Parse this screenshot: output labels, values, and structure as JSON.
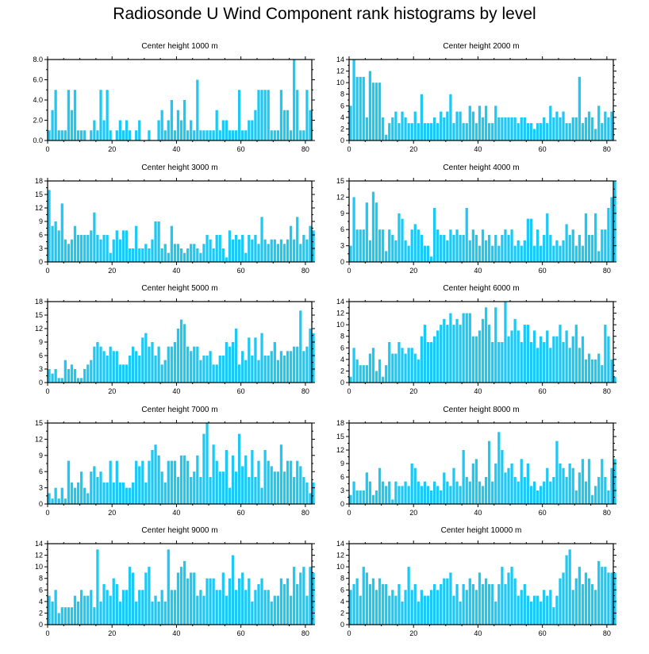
{
  "title": "Radiosonde U Wind Component rank histograms by level",
  "colors": {
    "bar": "#1ec8f5",
    "axis": "#000000"
  },
  "chart_data": [
    {
      "type": "bar",
      "title": "Center height 1000 m",
      "xlabel": "",
      "ylabel": "",
      "xlim": [
        0,
        82
      ],
      "ylim": [
        0,
        8
      ],
      "yticks": [
        0,
        2,
        4,
        6,
        8
      ],
      "ytick_labels": [
        "0.0",
        "2.0",
        "4.0",
        "6.0",
        "8.0"
      ],
      "xticks": [
        0,
        20,
        40,
        60,
        80
      ],
      "values": [
        1,
        3,
        5,
        1,
        1,
        1,
        5,
        3,
        5,
        1,
        1,
        1,
        0,
        1,
        2,
        1,
        5,
        2,
        5,
        1,
        0,
        1,
        2,
        1,
        2,
        1,
        0,
        1,
        2,
        0,
        0,
        1,
        0,
        0,
        2,
        3,
        1,
        2,
        4,
        1,
        3,
        2,
        4,
        1,
        2,
        1,
        6,
        1,
        1,
        1,
        1,
        1,
        3,
        1,
        2,
        2,
        1,
        1,
        1,
        5,
        1,
        1,
        2,
        2,
        3,
        5,
        5,
        5,
        5,
        1,
        1,
        1,
        5,
        3,
        3,
        1,
        8,
        5,
        1,
        1,
        5,
        3
      ]
    },
    {
      "type": "bar",
      "title": "Center height 2000 m",
      "xlabel": "",
      "ylabel": "",
      "xlim": [
        0,
        82
      ],
      "ylim": [
        0,
        14
      ],
      "yticks": [
        0,
        2,
        4,
        6,
        8,
        10,
        12,
        14
      ],
      "ytick_labels": [
        "0",
        "2",
        "4",
        "6",
        "8",
        "10",
        "12",
        "14"
      ],
      "xticks": [
        0,
        20,
        40,
        60,
        80
      ],
      "values": [
        6,
        14,
        11,
        11,
        11,
        4,
        12,
        10,
        10,
        10,
        4,
        1,
        3,
        4,
        5,
        3,
        5,
        4,
        3,
        3,
        5,
        3,
        8,
        3,
        3,
        3,
        4,
        3,
        5,
        4,
        5,
        8,
        3,
        5,
        5,
        3,
        3,
        6,
        5,
        3,
        6,
        4,
        6,
        3,
        3,
        6,
        4,
        4,
        4,
        4,
        4,
        4,
        3,
        4,
        4,
        3,
        3,
        2,
        3,
        3,
        4,
        3,
        6,
        4,
        5,
        4,
        5,
        3,
        3,
        4,
        4,
        11,
        3,
        4,
        5,
        4,
        2,
        6,
        3,
        5,
        4,
        5
      ]
    },
    {
      "type": "bar",
      "title": "Center height 3000 m",
      "xlabel": "",
      "ylabel": "",
      "xlim": [
        0,
        82
      ],
      "ylim": [
        0,
        18
      ],
      "yticks": [
        0,
        3,
        6,
        9,
        12,
        15,
        18
      ],
      "ytick_labels": [
        "0",
        "3",
        "6",
        "9",
        "12",
        "15",
        "18"
      ],
      "xticks": [
        0,
        20,
        40,
        60,
        80
      ],
      "values": [
        16,
        8,
        9,
        7,
        13,
        5,
        4,
        5,
        8,
        6,
        6,
        6,
        6,
        7,
        11,
        6,
        5,
        6,
        6,
        2,
        5,
        7,
        5,
        7,
        7,
        3,
        3,
        8,
        3,
        3,
        4,
        3,
        5,
        9,
        9,
        3,
        4,
        2,
        8,
        4,
        4,
        3,
        2,
        3,
        4,
        4,
        3,
        2,
        4,
        6,
        5,
        3,
        6,
        6,
        3,
        1,
        7,
        5,
        6,
        5,
        6,
        2,
        6,
        5,
        6,
        4,
        10,
        5,
        4,
        5,
        5,
        4,
        5,
        4,
        5,
        8,
        5,
        10,
        4,
        6,
        5,
        8,
        7
      ]
    },
    {
      "type": "bar",
      "title": "Center height 4000 m",
      "xlabel": "",
      "ylabel": "",
      "xlim": [
        0,
        82
      ],
      "ylim": [
        0,
        15
      ],
      "yticks": [
        0,
        3,
        6,
        9,
        12,
        15
      ],
      "ytick_labels": [
        "0",
        "3",
        "6",
        "9",
        "12",
        "15"
      ],
      "xticks": [
        0,
        20,
        40,
        60,
        80
      ],
      "values": [
        3,
        12,
        6,
        6,
        6,
        11,
        4,
        13,
        11,
        6,
        6,
        2,
        6,
        5,
        4,
        9,
        8,
        4,
        3,
        6,
        7,
        6,
        5,
        3,
        3,
        1,
        10,
        6,
        5,
        5,
        4,
        6,
        5,
        6,
        5,
        5,
        10,
        4,
        6,
        5,
        3,
        6,
        4,
        5,
        3,
        5,
        3,
        5,
        6,
        5,
        6,
        3,
        4,
        3,
        4,
        8,
        8,
        3,
        6,
        3,
        5,
        9,
        5,
        3,
        4,
        3,
        4,
        7,
        5,
        6,
        3,
        5,
        3,
        9,
        5,
        5,
        9,
        2,
        6,
        6,
        10,
        12,
        15
      ]
    },
    {
      "type": "bar",
      "title": "Center height 5000 m",
      "xlabel": "",
      "ylabel": "",
      "xlim": [
        0,
        82
      ],
      "ylim": [
        0,
        18
      ],
      "yticks": [
        0,
        3,
        6,
        9,
        12,
        15,
        18
      ],
      "ytick_labels": [
        "0",
        "3",
        "6",
        "9",
        "12",
        "15",
        "18"
      ],
      "xticks": [
        0,
        20,
        40,
        60,
        80
      ],
      "values": [
        3,
        2,
        3,
        1,
        1,
        5,
        3,
        4,
        3,
        1,
        1,
        3,
        4,
        5,
        8,
        9,
        8,
        7,
        6,
        8,
        7,
        7,
        4,
        4,
        4,
        6,
        8,
        7,
        6,
        10,
        11,
        8,
        9,
        6,
        8,
        4,
        5,
        8,
        8,
        9,
        12,
        14,
        13,
        8,
        7,
        8,
        8,
        5,
        6,
        6,
        7,
        4,
        4,
        6,
        6,
        9,
        8,
        9,
        12,
        4,
        7,
        5,
        10,
        6,
        10,
        5,
        11,
        6,
        6,
        7,
        9,
        5,
        7,
        6,
        7,
        7,
        8,
        8,
        16,
        7,
        8,
        12,
        11
      ]
    },
    {
      "type": "bar",
      "title": "Center height 6000 m",
      "xlabel": "",
      "ylabel": "",
      "xlim": [
        0,
        82
      ],
      "ylim": [
        0,
        14
      ],
      "yticks": [
        0,
        2,
        4,
        6,
        8,
        10,
        12,
        14
      ],
      "ytick_labels": [
        "0",
        "2",
        "4",
        "6",
        "8",
        "10",
        "12",
        "14"
      ],
      "xticks": [
        0,
        20,
        40,
        60,
        80
      ],
      "values": [
        1,
        6,
        4,
        3,
        3,
        3,
        5,
        6,
        2,
        4,
        1,
        3,
        7,
        5,
        5,
        7,
        6,
        5,
        6,
        6,
        5,
        4,
        8,
        10,
        7,
        7,
        8,
        9,
        10,
        11,
        10,
        12,
        10,
        11,
        10,
        12,
        12,
        12,
        8,
        8,
        9,
        11,
        13,
        10,
        7,
        13,
        7,
        7,
        14,
        8,
        9,
        11,
        9,
        7,
        10,
        10,
        7,
        9,
        6,
        8,
        7,
        9,
        6,
        8,
        8,
        10,
        7,
        9,
        6,
        8,
        10,
        6,
        8,
        4,
        5,
        4,
        4,
        5,
        3,
        10,
        8,
        4,
        1
      ]
    },
    {
      "type": "bar",
      "title": "Center height 7000 m",
      "xlabel": "",
      "ylabel": "",
      "xlim": [
        0,
        82
      ],
      "ylim": [
        0,
        15
      ],
      "yticks": [
        0,
        3,
        6,
        9,
        12,
        15
      ],
      "ytick_labels": [
        "0",
        "3",
        "6",
        "9",
        "12",
        "15"
      ],
      "xticks": [
        0,
        20,
        40,
        60,
        80
      ],
      "values": [
        2,
        1,
        3,
        1,
        3,
        1,
        8,
        4,
        3,
        4,
        6,
        3,
        2,
        6,
        7,
        5,
        6,
        4,
        4,
        8,
        4,
        8,
        4,
        4,
        3,
        3,
        4,
        8,
        7,
        8,
        4,
        8,
        10,
        11,
        9,
        6,
        4,
        8,
        8,
        8,
        5,
        9,
        9,
        8,
        5,
        6,
        9,
        5,
        13,
        15,
        5,
        11,
        8,
        6,
        6,
        10,
        3,
        9,
        6,
        13,
        7,
        9,
        5,
        10,
        5,
        8,
        3,
        10,
        8,
        7,
        6,
        6,
        11,
        6,
        8,
        8,
        5,
        8,
        7,
        5,
        4,
        2,
        4
      ]
    },
    {
      "type": "bar",
      "title": "Center height 8000 m",
      "xlabel": "",
      "ylabel": "",
      "xlim": [
        0,
        82
      ],
      "ylim": [
        0,
        18
      ],
      "yticks": [
        0,
        3,
        6,
        9,
        12,
        15,
        18
      ],
      "ytick_labels": [
        "0",
        "3",
        "6",
        "9",
        "12",
        "15",
        "18"
      ],
      "xticks": [
        0,
        20,
        40,
        60,
        80
      ],
      "values": [
        2,
        5,
        3,
        3,
        3,
        7,
        5,
        2,
        3,
        8,
        5,
        4,
        5,
        1,
        5,
        4,
        4,
        5,
        4,
        9,
        8,
        5,
        4,
        5,
        4,
        3,
        5,
        4,
        3,
        7,
        5,
        4,
        8,
        5,
        4,
        12,
        6,
        5,
        9,
        10,
        5,
        4,
        6,
        14,
        5,
        9,
        16,
        12,
        7,
        8,
        9,
        6,
        5,
        10,
        6,
        9,
        4,
        5,
        3,
        4,
        5,
        8,
        5,
        6,
        14,
        9,
        8,
        6,
        9,
        8,
        3,
        7,
        10,
        5,
        10,
        2,
        4,
        6,
        10,
        6,
        3,
        8,
        10
      ]
    },
    {
      "type": "bar",
      "title": "Center height 9000 m",
      "xlabel": "",
      "ylabel": "",
      "xlim": [
        0,
        82
      ],
      "ylim": [
        0,
        14
      ],
      "yticks": [
        0,
        2,
        4,
        6,
        8,
        10,
        12,
        14
      ],
      "ytick_labels": [
        "0",
        "2",
        "4",
        "6",
        "8",
        "10",
        "12",
        "14"
      ],
      "xticks": [
        0,
        20,
        40,
        60,
        80
      ],
      "values": [
        5,
        4,
        6,
        2,
        3,
        3,
        3,
        3,
        5,
        4,
        6,
        5,
        5,
        6,
        3,
        13,
        4,
        7,
        6,
        5,
        8,
        7,
        4,
        6,
        6,
        10,
        9,
        4,
        6,
        6,
        9,
        10,
        4,
        5,
        4,
        6,
        4,
        13,
        6,
        6,
        9,
        10,
        11,
        8,
        9,
        9,
        5,
        6,
        5,
        8,
        8,
        8,
        6,
        6,
        9,
        5,
        8,
        12,
        6,
        8,
        9,
        6,
        8,
        4,
        6,
        7,
        8,
        6,
        6,
        4,
        5,
        5,
        8,
        7,
        8,
        5,
        10,
        7,
        9,
        10,
        5,
        10,
        9
      ]
    },
    {
      "type": "bar",
      "title": "Center height 10000 m",
      "xlabel": "",
      "ylabel": "",
      "xlim": [
        0,
        82
      ],
      "ylim": [
        0,
        14
      ],
      "yticks": [
        0,
        2,
        4,
        6,
        8,
        10,
        12,
        14
      ],
      "ytick_labels": [
        "0",
        "2",
        "4",
        "6",
        "8",
        "10",
        "12",
        "14"
      ],
      "xticks": [
        0,
        20,
        40,
        60,
        80
      ],
      "values": [
        6,
        7,
        8,
        5,
        10,
        9,
        7,
        8,
        6,
        8,
        7,
        7,
        5,
        6,
        5,
        7,
        4,
        6,
        10,
        6,
        7,
        4,
        6,
        5,
        5,
        6,
        7,
        6,
        7,
        8,
        8,
        9,
        5,
        7,
        4,
        7,
        6,
        8,
        7,
        6,
        9,
        7,
        8,
        7,
        7,
        4,
        7,
        10,
        7,
        9,
        10,
        8,
        5,
        6,
        7,
        5,
        4,
        5,
        5,
        4,
        6,
        5,
        6,
        3,
        5,
        8,
        9,
        12,
        13,
        6,
        8,
        10,
        7,
        9,
        8,
        7,
        6,
        11,
        10,
        10,
        9,
        9,
        9
      ]
    }
  ]
}
